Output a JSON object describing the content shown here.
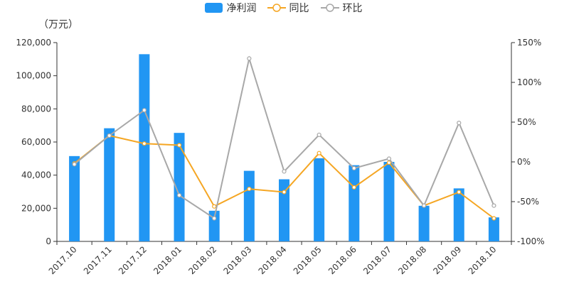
{
  "chart_data": {
    "type": "bar",
    "y_unit_label": "（万元）",
    "categories": [
      "2017.10",
      "2017.11",
      "2017.12",
      "2018.01",
      "2018.02",
      "2018.03",
      "2018.04",
      "2018.05",
      "2018.06",
      "2018.07",
      "2018.08",
      "2018.09",
      "2018.10"
    ],
    "series": [
      {
        "name": "净利润",
        "type": "bar",
        "axis": "left",
        "color": "#2196f3",
        "values": [
          51500,
          68300,
          113000,
          65500,
          18500,
          42600,
          37500,
          50200,
          46000,
          48000,
          21500,
          32000,
          14500
        ]
      },
      {
        "name": "同比",
        "type": "line",
        "axis": "right",
        "color": "#f5a623",
        "values": [
          -2,
          33,
          23,
          21,
          -56,
          -34,
          -38,
          11,
          -32,
          -1,
          -55,
          -38,
          -71
        ]
      },
      {
        "name": "环比",
        "type": "line",
        "axis": "right",
        "color": "#a8a8a8",
        "values": [
          -3,
          33,
          65,
          -42,
          -71,
          130,
          -12,
          34,
          -8,
          4,
          -55,
          49,
          -55
        ]
      }
    ],
    "left_axis": {
      "min": 0,
      "max": 120000,
      "ticks": [
        0,
        20000,
        40000,
        60000,
        80000,
        100000,
        120000
      ],
      "tick_labels": [
        "0",
        "20,000",
        "40,000",
        "60,000",
        "80,000",
        "100,000",
        "120,000"
      ]
    },
    "right_axis": {
      "min": -100,
      "max": 150,
      "ticks": [
        -100,
        -50,
        0,
        50,
        100,
        150
      ],
      "tick_labels": [
        "-100%",
        "-50%",
        "0%",
        "50%",
        "100%",
        "150%"
      ]
    },
    "legend_position": "top-center",
    "grid": false
  }
}
